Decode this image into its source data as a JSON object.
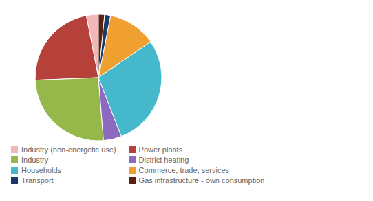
{
  "chart_data": {
    "type": "pie",
    "categories": [
      "Industry (non-energetic use)",
      "Power plants",
      "Industry",
      "District heating",
      "Households",
      "Commerce, trade, services",
      "Transport",
      "Gas infrastructure - own consumption"
    ],
    "values": [
      3.0,
      22.0,
      25.0,
      4.5,
      28.0,
      12.0,
      1.5,
      1.5
    ],
    "colors": [
      "#f2b8b8",
      "#b5413a",
      "#96b84a",
      "#8b6abf",
      "#45b8cc",
      "#f0a030",
      "#1a3a6a",
      "#5a2010"
    ],
    "legend": "lower left"
  }
}
